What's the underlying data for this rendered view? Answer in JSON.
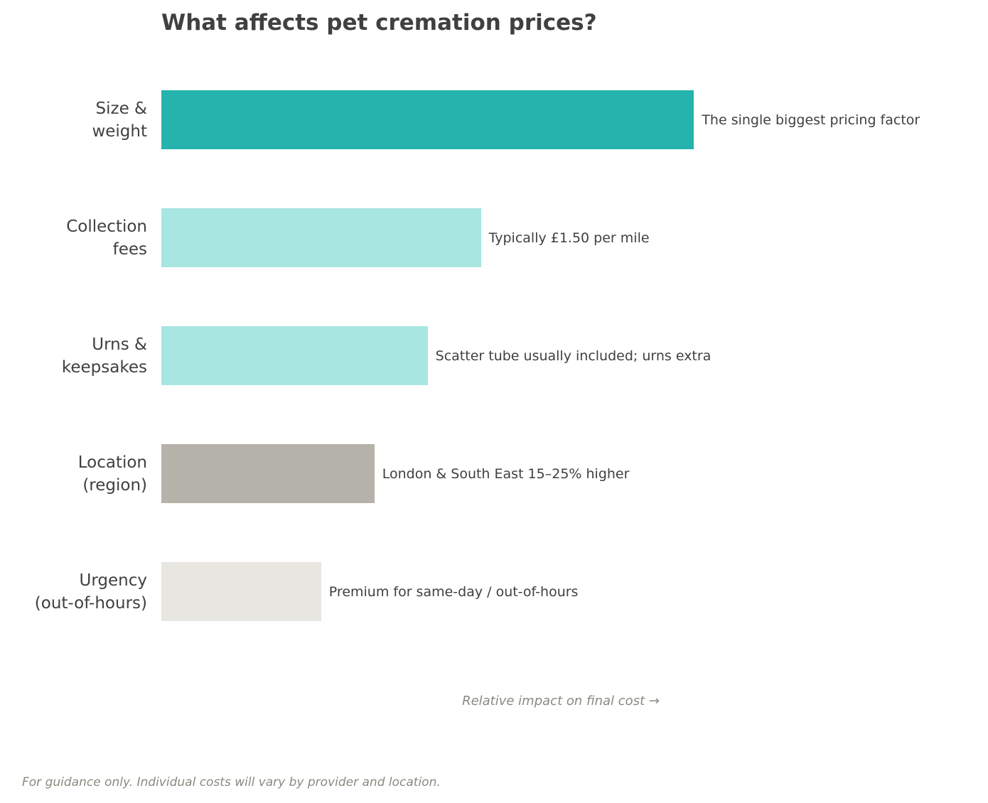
{
  "chart_data": {
    "type": "bar",
    "orientation": "horizontal",
    "title": "What affects pet cremation prices?",
    "xlabel": "Relative impact on final cost →",
    "ylabel": "",
    "xlim": [
      0,
      15
    ],
    "grid": false,
    "categories": [
      "Size &\nweight",
      "Collection\nfees",
      "Urns &\nkeepsakes",
      "Location\n(region)",
      "Urgency\n(out-of-hours)"
    ],
    "values": [
      10,
      6,
      5,
      4,
      3
    ],
    "colors": [
      "#26b3ae",
      "#a8e6e2",
      "#a8e6e2",
      "#b5b2aa",
      "#e8e6e1"
    ],
    "annotations": [
      "The single biggest pricing factor",
      "Typically £1.50 per mile",
      "Scatter tube usually included; urns extra",
      "London & South East 15–25% higher",
      "Premium for same-day / out-of-hours"
    ]
  },
  "footer": "For guidance only. Individual costs will vary by provider and location."
}
